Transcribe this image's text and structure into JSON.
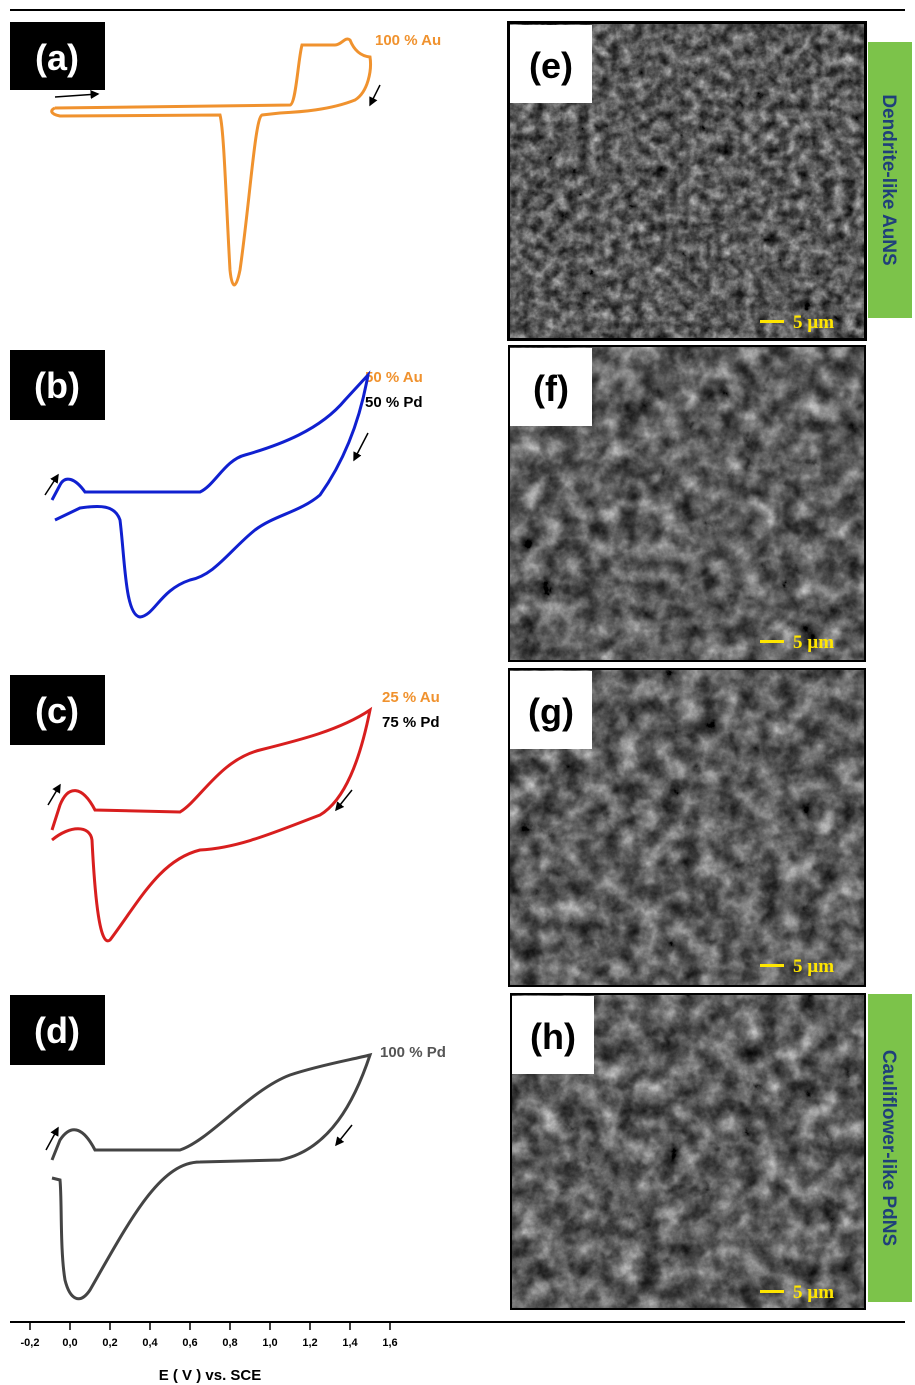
{
  "panels": [
    {
      "label": "(a)",
      "composition": [
        "100 % Au"
      ]
    },
    {
      "label": "(b)",
      "composition": [
        "50 % Au",
        "50 % Pd"
      ]
    },
    {
      "label": "(c)",
      "composition": [
        "25 % Au",
        "75 % Pd"
      ]
    },
    {
      "label": "(d)",
      "composition": [
        "100 % Pd"
      ]
    }
  ],
  "images": [
    {
      "label": "(e)",
      "scale_bar": "5 µm"
    },
    {
      "label": "(f)",
      "scale_bar": "5 µm"
    },
    {
      "label": "(g)",
      "scale_bar": "5 µm"
    },
    {
      "label": "(h)",
      "scale_bar": "5 µm"
    }
  ],
  "side_labels": [
    "Dendrite-like AuNS",
    "Cauliflower-like PdNS"
  ],
  "x_axis": {
    "label": "E ( V ) vs. SCE",
    "ticks": [
      {
        "value": -0.2,
        "label": "-0,2"
      },
      {
        "value": 0,
        "label": "0,0"
      },
      {
        "value": 0.2,
        "label": "0,2"
      },
      {
        "value": 0.4,
        "label": "0,4"
      },
      {
        "value": 0.6,
        "label": "0,6"
      },
      {
        "value": 0.8,
        "label": "0,8"
      },
      {
        "value": 1,
        "label": "1,0"
      },
      {
        "value": 1.2,
        "label": "1,2"
      },
      {
        "value": 1.4,
        "label": "1,4"
      },
      {
        "value": 1.6,
        "label": "1,6"
      }
    ]
  }
}
